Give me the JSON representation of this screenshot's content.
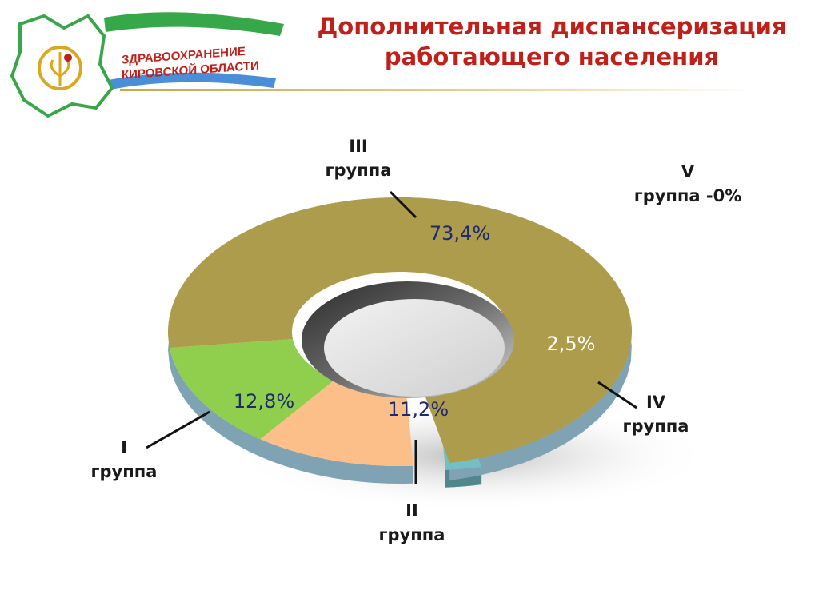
{
  "header": {
    "title_line1": "Дополнительная диспансеризация",
    "title_line2": "работающего населения",
    "logo_line1": "ЗДРАВООХРАНЕНИЕ",
    "logo_line2": "КИРОВСКОЙ ОБЛАСТИ"
  },
  "colors": {
    "title": "#c0201a",
    "group1": "#8fcf4d",
    "group2": "#fdbf89",
    "group3": "#ad9c4b",
    "group4": "#74bfc6",
    "group5": "#d9eff1",
    "value_text": "#1f2a6e"
  },
  "chart_data": {
    "type": "pie",
    "style": "3d-donut",
    "categories": [
      "I группа",
      "II группа",
      "III группа",
      "IV группа",
      "V группа"
    ],
    "values": [
      12.8,
      11.2,
      73.4,
      2.5,
      0
    ],
    "value_labels": [
      "12,8%",
      "11,2%",
      "73,4%",
      "2,5%",
      ""
    ],
    "slices": [
      {
        "label_line1": "I",
        "label_line2": "группа",
        "value": 12.8,
        "value_text": "12,8%"
      },
      {
        "label_line1": "II",
        "label_line2": "группа",
        "value": 11.2,
        "value_text": "11,2%"
      },
      {
        "label_line1": "III",
        "label_line2": "группа",
        "value": 73.4,
        "value_text": "73,4%"
      },
      {
        "label_line1": "IV",
        "label_line2": "группа",
        "value": 2.5,
        "value_text": "2,5%"
      },
      {
        "label_line1": "V",
        "label_line2": "группа -0%",
        "value": 0,
        "value_text": ""
      }
    ],
    "legend": "none"
  }
}
